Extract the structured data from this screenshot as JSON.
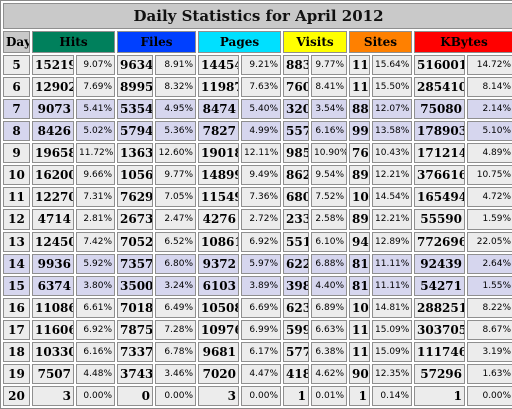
{
  "title": "Daily Statistics for April 2012",
  "headers": {
    "day": "Day",
    "hits": "Hits",
    "files": "Files",
    "pages": "Pages",
    "visits": "Visits",
    "sites": "Sites",
    "kbytes": "KBytes"
  },
  "colors": {
    "hits": "#00805c",
    "files": "#0040ff",
    "pages": "#00e0ff",
    "visits": "#ffff00",
    "sites": "#ff8000",
    "kbytes": "#ff0000",
    "weekend_row": "#d6d6ee",
    "weekday_row": "#ececec"
  },
  "rows": [
    {
      "day": "5",
      "weekend": false,
      "hits": "15219",
      "hits_pct": "9.07%",
      "files": "9634",
      "files_pct": "8.91%",
      "pages": "14454",
      "pages_pct": "9.21%",
      "visits": "883",
      "visits_pct": "9.77%",
      "sites": "114",
      "sites_pct": "15.64%",
      "kbytes": "516001",
      "kbytes_pct": "14.72%"
    },
    {
      "day": "6",
      "weekend": false,
      "hits": "12902",
      "hits_pct": "7.69%",
      "files": "8995",
      "files_pct": "8.32%",
      "pages": "11987",
      "pages_pct": "7.63%",
      "visits": "760",
      "visits_pct": "8.41%",
      "sites": "113",
      "sites_pct": "15.50%",
      "kbytes": "285410",
      "kbytes_pct": "8.14%"
    },
    {
      "day": "7",
      "weekend": true,
      "hits": "9073",
      "hits_pct": "5.41%",
      "files": "5354",
      "files_pct": "4.95%",
      "pages": "8474",
      "pages_pct": "5.40%",
      "visits": "320",
      "visits_pct": "3.54%",
      "sites": "88",
      "sites_pct": "12.07%",
      "kbytes": "75080",
      "kbytes_pct": "2.14%"
    },
    {
      "day": "8",
      "weekend": true,
      "hits": "8426",
      "hits_pct": "5.02%",
      "files": "5794",
      "files_pct": "5.36%",
      "pages": "7827",
      "pages_pct": "4.99%",
      "visits": "557",
      "visits_pct": "6.16%",
      "sites": "99",
      "sites_pct": "13.58%",
      "kbytes": "178903",
      "kbytes_pct": "5.10%"
    },
    {
      "day": "9",
      "weekend": false,
      "hits": "19658",
      "hits_pct": "11.72%",
      "files": "13633",
      "files_pct": "12.60%",
      "pages": "19018",
      "pages_pct": "12.11%",
      "visits": "985",
      "visits_pct": "10.90%",
      "sites": "76",
      "sites_pct": "10.43%",
      "kbytes": "171214",
      "kbytes_pct": "4.89%"
    },
    {
      "day": "10",
      "weekend": false,
      "hits": "16200",
      "hits_pct": "9.66%",
      "files": "10565",
      "files_pct": "9.77%",
      "pages": "14899",
      "pages_pct": "9.49%",
      "visits": "862",
      "visits_pct": "9.54%",
      "sites": "89",
      "sites_pct": "12.21%",
      "kbytes": "376616",
      "kbytes_pct": "10.75%"
    },
    {
      "day": "11",
      "weekend": false,
      "hits": "12270",
      "hits_pct": "7.31%",
      "files": "7629",
      "files_pct": "7.05%",
      "pages": "11549",
      "pages_pct": "7.36%",
      "visits": "680",
      "visits_pct": "7.52%",
      "sites": "106",
      "sites_pct": "14.54%",
      "kbytes": "165494",
      "kbytes_pct": "4.72%"
    },
    {
      "day": "12",
      "weekend": false,
      "hits": "4714",
      "hits_pct": "2.81%",
      "files": "2673",
      "files_pct": "2.47%",
      "pages": "4276",
      "pages_pct": "2.72%",
      "visits": "233",
      "visits_pct": "2.58%",
      "sites": "89",
      "sites_pct": "12.21%",
      "kbytes": "55590",
      "kbytes_pct": "1.59%"
    },
    {
      "day": "13",
      "weekend": false,
      "hits": "12450",
      "hits_pct": "7.42%",
      "files": "7052",
      "files_pct": "6.52%",
      "pages": "10861",
      "pages_pct": "6.92%",
      "visits": "551",
      "visits_pct": "6.10%",
      "sites": "94",
      "sites_pct": "12.89%",
      "kbytes": "772696",
      "kbytes_pct": "22.05%"
    },
    {
      "day": "14",
      "weekend": true,
      "hits": "9936",
      "hits_pct": "5.92%",
      "files": "7357",
      "files_pct": "6.80%",
      "pages": "9372",
      "pages_pct": "5.97%",
      "visits": "622",
      "visits_pct": "6.88%",
      "sites": "81",
      "sites_pct": "11.11%",
      "kbytes": "92439",
      "kbytes_pct": "2.64%"
    },
    {
      "day": "15",
      "weekend": true,
      "hits": "6374",
      "hits_pct": "3.80%",
      "files": "3500",
      "files_pct": "3.24%",
      "pages": "6103",
      "pages_pct": "3.89%",
      "visits": "398",
      "visits_pct": "4.40%",
      "sites": "81",
      "sites_pct": "11.11%",
      "kbytes": "54271",
      "kbytes_pct": "1.55%"
    },
    {
      "day": "16",
      "weekend": false,
      "hits": "11086",
      "hits_pct": "6.61%",
      "files": "7018",
      "files_pct": "6.49%",
      "pages": "10508",
      "pages_pct": "6.69%",
      "visits": "623",
      "visits_pct": "6.89%",
      "sites": "108",
      "sites_pct": "14.81%",
      "kbytes": "288251",
      "kbytes_pct": "8.22%"
    },
    {
      "day": "17",
      "weekend": false,
      "hits": "11606",
      "hits_pct": "6.92%",
      "files": "7875",
      "files_pct": "7.28%",
      "pages": "10976",
      "pages_pct": "6.99%",
      "visits": "599",
      "visits_pct": "6.63%",
      "sites": "110",
      "sites_pct": "15.09%",
      "kbytes": "303705",
      "kbytes_pct": "8.67%"
    },
    {
      "day": "18",
      "weekend": false,
      "hits": "10330",
      "hits_pct": "6.16%",
      "files": "7337",
      "files_pct": "6.78%",
      "pages": "9681",
      "pages_pct": "6.17%",
      "visits": "577",
      "visits_pct": "6.38%",
      "sites": "110",
      "sites_pct": "15.09%",
      "kbytes": "111746",
      "kbytes_pct": "3.19%"
    },
    {
      "day": "19",
      "weekend": false,
      "hits": "7507",
      "hits_pct": "4.48%",
      "files": "3743",
      "files_pct": "3.46%",
      "pages": "7020",
      "pages_pct": "4.47%",
      "visits": "418",
      "visits_pct": "4.62%",
      "sites": "90",
      "sites_pct": "12.35%",
      "kbytes": "57296",
      "kbytes_pct": "1.63%"
    },
    {
      "day": "20",
      "weekend": false,
      "hits": "3",
      "hits_pct": "0.00%",
      "files": "0",
      "files_pct": "0.00%",
      "pages": "3",
      "pages_pct": "0.00%",
      "visits": "1",
      "visits_pct": "0.01%",
      "sites": "1",
      "sites_pct": "0.14%",
      "kbytes": "1",
      "kbytes_pct": "0.00%"
    }
  ]
}
